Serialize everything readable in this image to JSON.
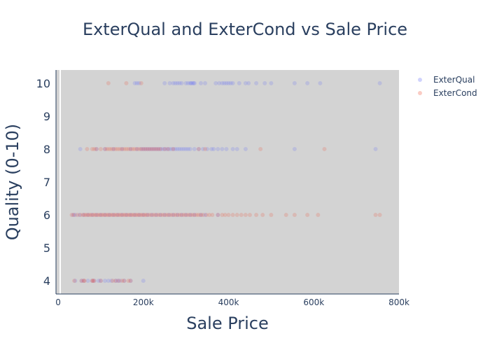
{
  "chart_data": {
    "type": "scatter",
    "title": "ExterQual and ExterCond vs Sale Price",
    "xlabel": "Sale Price",
    "ylabel": "Quality (0-10)",
    "xlim": [
      -5000,
      800000
    ],
    "ylim": [
      3.6,
      10.4
    ],
    "x_ticks": [
      0,
      200000,
      400000,
      600000,
      800000
    ],
    "x_tick_labels": [
      "0",
      "200k",
      "400k",
      "600k",
      "800k"
    ],
    "y_ticks": [
      4,
      5,
      6,
      7,
      8,
      9,
      10
    ],
    "y_tick_labels": [
      "4",
      "5",
      "6",
      "7",
      "8",
      "9",
      "10"
    ],
    "grid": false,
    "legend_position": "top-right",
    "plot_background": "#d3d3d3",
    "series": [
      {
        "name": "ExterQual",
        "color": "#636efa",
        "opacity": 0.2,
        "points": [
          [
            180000,
            10
          ],
          [
            185000,
            10
          ],
          [
            190000,
            10
          ],
          [
            250000,
            10
          ],
          [
            262000,
            10
          ],
          [
            270000,
            10
          ],
          [
            275000,
            10
          ],
          [
            280000,
            10
          ],
          [
            285000,
            10
          ],
          [
            290000,
            10
          ],
          [
            300000,
            10
          ],
          [
            305000,
            10
          ],
          [
            310000,
            10
          ],
          [
            312000,
            10
          ],
          [
            315000,
            10
          ],
          [
            318000,
            10
          ],
          [
            320000,
            10
          ],
          [
            335000,
            10
          ],
          [
            345000,
            10
          ],
          [
            370000,
            10
          ],
          [
            378000,
            10
          ],
          [
            385000,
            10
          ],
          [
            390000,
            10
          ],
          [
            395000,
            10
          ],
          [
            400000,
            10
          ],
          [
            405000,
            10
          ],
          [
            410000,
            10
          ],
          [
            425000,
            10
          ],
          [
            440000,
            10
          ],
          [
            447000,
            10
          ],
          [
            465000,
            10
          ],
          [
            485000,
            10
          ],
          [
            500000,
            10
          ],
          [
            555000,
            10
          ],
          [
            585000,
            10
          ],
          [
            615000,
            10
          ],
          [
            755000,
            10
          ],
          [
            52000,
            8
          ],
          [
            90000,
            8
          ],
          [
            110000,
            8
          ],
          [
            130000,
            8
          ],
          [
            150000,
            8
          ],
          [
            170000,
            8
          ],
          [
            185000,
            8
          ],
          [
            195000,
            8
          ],
          [
            200000,
            8
          ],
          [
            205000,
            8
          ],
          [
            210000,
            8
          ],
          [
            215000,
            8
          ],
          [
            220000,
            8
          ],
          [
            225000,
            8
          ],
          [
            230000,
            8
          ],
          [
            235000,
            8
          ],
          [
            240000,
            8
          ],
          [
            245000,
            8
          ],
          [
            250000,
            8
          ],
          [
            255000,
            8
          ],
          [
            260000,
            8
          ],
          [
            265000,
            8
          ],
          [
            270000,
            8
          ],
          [
            275000,
            8
          ],
          [
            280000,
            8
          ],
          [
            285000,
            8
          ],
          [
            290000,
            8
          ],
          [
            295000,
            8
          ],
          [
            300000,
            8
          ],
          [
            305000,
            8
          ],
          [
            310000,
            8
          ],
          [
            320000,
            8
          ],
          [
            330000,
            8
          ],
          [
            340000,
            8
          ],
          [
            350000,
            8
          ],
          [
            360000,
            8
          ],
          [
            365000,
            8
          ],
          [
            375000,
            8
          ],
          [
            385000,
            8
          ],
          [
            395000,
            8
          ],
          [
            410000,
            8
          ],
          [
            420000,
            8
          ],
          [
            440000,
            8
          ],
          [
            555000,
            8
          ],
          [
            745000,
            8
          ],
          [
            35000,
            6
          ],
          [
            40000,
            6
          ],
          [
            50000,
            6
          ],
          [
            60000,
            6
          ],
          [
            70000,
            6
          ],
          [
            80000,
            6
          ],
          [
            90000,
            6
          ],
          [
            100000,
            6
          ],
          [
            110000,
            6
          ],
          [
            120000,
            6
          ],
          [
            130000,
            6
          ],
          [
            140000,
            6
          ],
          [
            150000,
            6
          ],
          [
            160000,
            6
          ],
          [
            170000,
            6
          ],
          [
            180000,
            6
          ],
          [
            190000,
            6
          ],
          [
            200000,
            6
          ],
          [
            210000,
            6
          ],
          [
            220000,
            6
          ],
          [
            230000,
            6
          ],
          [
            240000,
            6
          ],
          [
            250000,
            6
          ],
          [
            260000,
            6
          ],
          [
            270000,
            6
          ],
          [
            280000,
            6
          ],
          [
            290000,
            6
          ],
          [
            300000,
            6
          ],
          [
            310000,
            6
          ],
          [
            320000,
            6
          ],
          [
            335000,
            6
          ],
          [
            345000,
            6
          ],
          [
            375000,
            6
          ],
          [
            40000,
            4
          ],
          [
            55000,
            4
          ],
          [
            60000,
            4
          ],
          [
            70000,
            4
          ],
          [
            80000,
            4
          ],
          [
            85000,
            4
          ],
          [
            95000,
            4
          ],
          [
            100000,
            4
          ],
          [
            110000,
            4
          ],
          [
            118000,
            4
          ],
          [
            125000,
            4
          ],
          [
            135000,
            4
          ],
          [
            140000,
            4
          ],
          [
            145000,
            4
          ],
          [
            155000,
            4
          ],
          [
            170000,
            4
          ],
          [
            200000,
            4
          ]
        ]
      },
      {
        "name": "ExterCond",
        "color": "#ef553b",
        "opacity": 0.2,
        "points": [
          [
            118000,
            10
          ],
          [
            160000,
            10
          ],
          [
            195000,
            10
          ],
          [
            68000,
            8
          ],
          [
            80000,
            8
          ],
          [
            85000,
            8
          ],
          [
            90000,
            8
          ],
          [
            100000,
            8
          ],
          [
            110000,
            8
          ],
          [
            115000,
            8
          ],
          [
            120000,
            8
          ],
          [
            125000,
            8
          ],
          [
            130000,
            8
          ],
          [
            135000,
            8
          ],
          [
            140000,
            8
          ],
          [
            145000,
            8
          ],
          [
            150000,
            8
          ],
          [
            155000,
            8
          ],
          [
            160000,
            8
          ],
          [
            165000,
            8
          ],
          [
            170000,
            8
          ],
          [
            175000,
            8
          ],
          [
            180000,
            8
          ],
          [
            185000,
            8
          ],
          [
            190000,
            8
          ],
          [
            195000,
            8
          ],
          [
            200000,
            8
          ],
          [
            205000,
            8
          ],
          [
            210000,
            8
          ],
          [
            215000,
            8
          ],
          [
            220000,
            8
          ],
          [
            225000,
            8
          ],
          [
            230000,
            8
          ],
          [
            235000,
            8
          ],
          [
            240000,
            8
          ],
          [
            250000,
            8
          ],
          [
            258000,
            8
          ],
          [
            270000,
            8
          ],
          [
            330000,
            8
          ],
          [
            345000,
            8
          ],
          [
            475000,
            8
          ],
          [
            625000,
            8
          ],
          [
            32000,
            6
          ],
          [
            37000,
            6
          ],
          [
            45000,
            6
          ],
          [
            52000,
            6
          ],
          [
            58000,
            6
          ],
          [
            62000,
            6
          ],
          [
            66000,
            6
          ],
          [
            70000,
            6
          ],
          [
            74000,
            6
          ],
          [
            78000,
            6
          ],
          [
            82000,
            6
          ],
          [
            86000,
            6
          ],
          [
            90000,
            6
          ],
          [
            94000,
            6
          ],
          [
            98000,
            6
          ],
          [
            102000,
            6
          ],
          [
            106000,
            6
          ],
          [
            110000,
            6
          ],
          [
            114000,
            6
          ],
          [
            118000,
            6
          ],
          [
            122000,
            6
          ],
          [
            126000,
            6
          ],
          [
            130000,
            6
          ],
          [
            134000,
            6
          ],
          [
            138000,
            6
          ],
          [
            142000,
            6
          ],
          [
            146000,
            6
          ],
          [
            150000,
            6
          ],
          [
            154000,
            6
          ],
          [
            158000,
            6
          ],
          [
            162000,
            6
          ],
          [
            166000,
            6
          ],
          [
            170000,
            6
          ],
          [
            174000,
            6
          ],
          [
            178000,
            6
          ],
          [
            182000,
            6
          ],
          [
            186000,
            6
          ],
          [
            190000,
            6
          ],
          [
            194000,
            6
          ],
          [
            198000,
            6
          ],
          [
            202000,
            6
          ],
          [
            206000,
            6
          ],
          [
            210000,
            6
          ],
          [
            215000,
            6
          ],
          [
            220000,
            6
          ],
          [
            225000,
            6
          ],
          [
            230000,
            6
          ],
          [
            235000,
            6
          ],
          [
            240000,
            6
          ],
          [
            245000,
            6
          ],
          [
            250000,
            6
          ],
          [
            255000,
            6
          ],
          [
            260000,
            6
          ],
          [
            265000,
            6
          ],
          [
            270000,
            6
          ],
          [
            275000,
            6
          ],
          [
            280000,
            6
          ],
          [
            285000,
            6
          ],
          [
            290000,
            6
          ],
          [
            295000,
            6
          ],
          [
            300000,
            6
          ],
          [
            305000,
            6
          ],
          [
            310000,
            6
          ],
          [
            315000,
            6
          ],
          [
            320000,
            6
          ],
          [
            325000,
            6
          ],
          [
            330000,
            6
          ],
          [
            335000,
            6
          ],
          [
            340000,
            6
          ],
          [
            348000,
            6
          ],
          [
            355000,
            6
          ],
          [
            362000,
            6
          ],
          [
            375000,
            6
          ],
          [
            385000,
            6
          ],
          [
            392000,
            6
          ],
          [
            400000,
            6
          ],
          [
            410000,
            6
          ],
          [
            420000,
            6
          ],
          [
            430000,
            6
          ],
          [
            440000,
            6
          ],
          [
            450000,
            6
          ],
          [
            465000,
            6
          ],
          [
            480000,
            6
          ],
          [
            500000,
            6
          ],
          [
            535000,
            6
          ],
          [
            555000,
            6
          ],
          [
            585000,
            6
          ],
          [
            610000,
            6
          ],
          [
            745000,
            6
          ],
          [
            755000,
            6
          ],
          [
            38000,
            4
          ],
          [
            55000,
            4
          ],
          [
            60000,
            4
          ],
          [
            62000,
            4
          ],
          [
            80000,
            4
          ],
          [
            82000,
            4
          ],
          [
            84000,
            4
          ],
          [
            100000,
            4
          ],
          [
            128000,
            4
          ],
          [
            135000,
            4
          ],
          [
            142000,
            4
          ],
          [
            150000,
            4
          ],
          [
            155000,
            4
          ],
          [
            165000,
            4
          ],
          [
            170000,
            4
          ]
        ]
      }
    ]
  }
}
